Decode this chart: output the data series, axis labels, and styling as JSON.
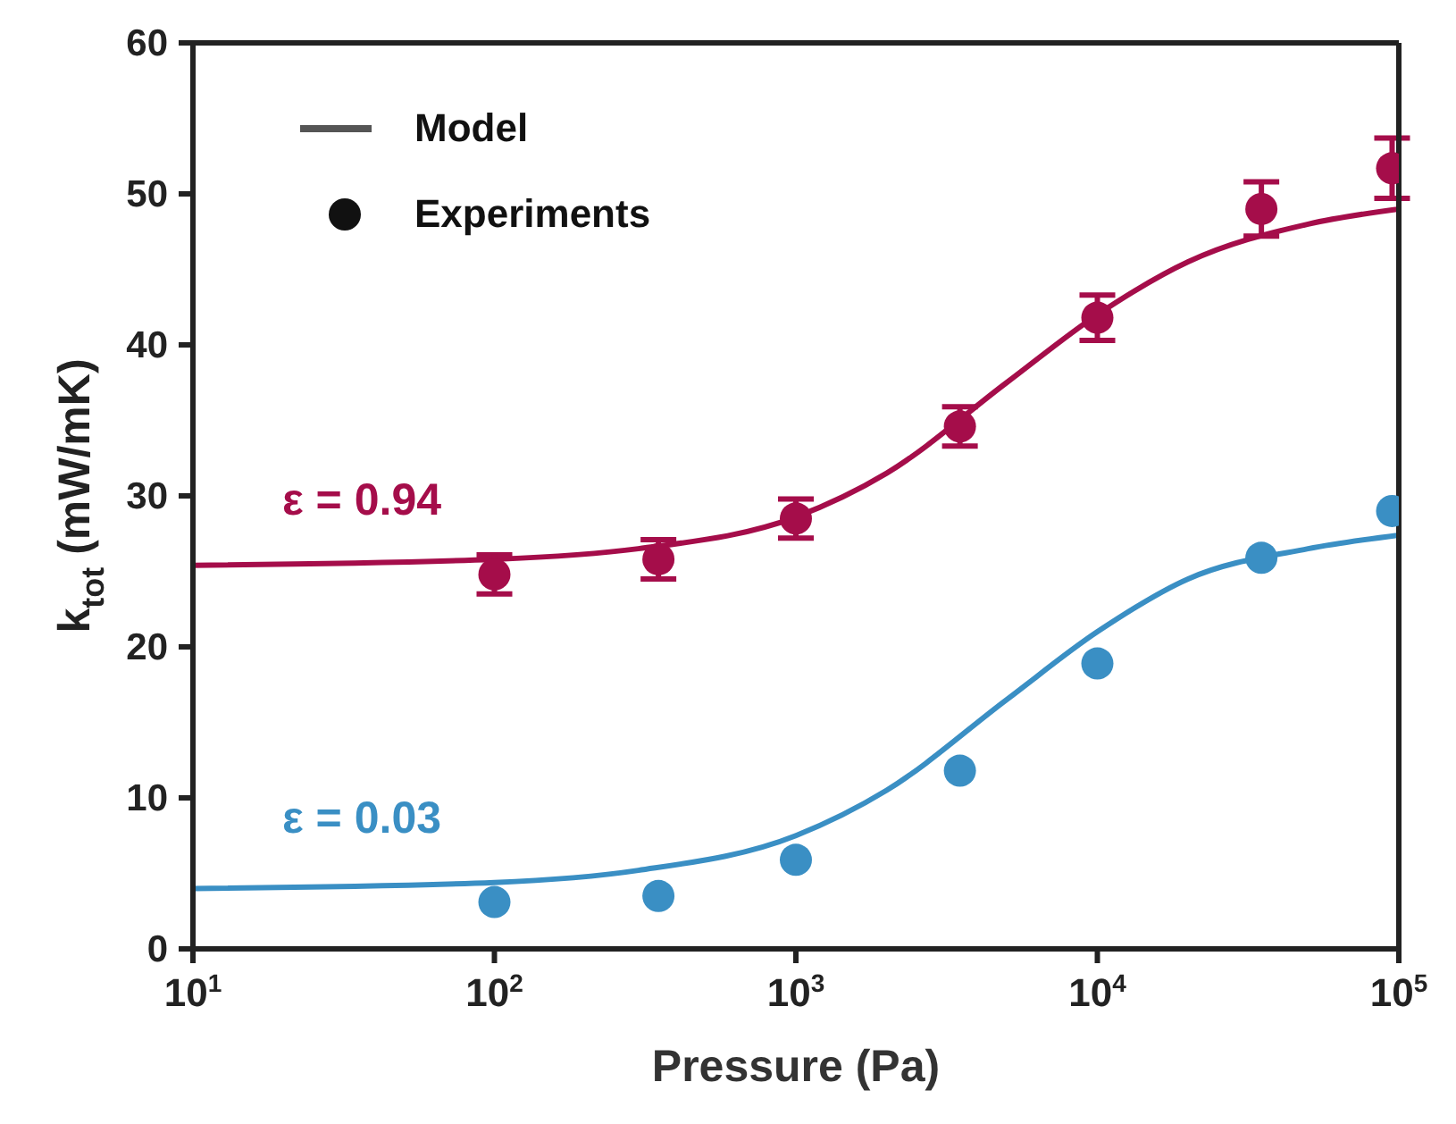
{
  "chart_data": {
    "type": "scatter",
    "xlabel": "Pressure (Pa)",
    "ylabel": "k$_{tot}$ (mW/mK)",
    "log": "x",
    "xlim": [
      10,
      100000
    ],
    "xticks": [
      {
        "value": 10,
        "label": "10$^{1}$"
      },
      {
        "value": 100,
        "label": "10$^{2}$"
      },
      {
        "value": 1000,
        "label": "10$^{3}$"
      },
      {
        "value": 10000,
        "label": "10$^{4}$"
      },
      {
        "value": 100000,
        "label": "10$^{5}$"
      }
    ],
    "ylim": [
      0,
      60
    ],
    "yticks": [
      0,
      10,
      20,
      30,
      40,
      50,
      60
    ],
    "line_style": "solid",
    "series": [
      {
        "type": "line",
        "marker": "none",
        "color": "#a50d4a",
        "x": [
          10,
          100,
          300,
          1000,
          2000,
          5000,
          10000,
          20000,
          50000,
          100000
        ],
        "values": [
          25.4,
          25.8,
          26.5,
          28.6,
          31.5,
          37.5,
          42,
          45.5,
          48,
          49
        ]
      },
      {
        "type": "line",
        "marker": "none",
        "color": "#3a8fc4",
        "x": [
          10,
          100,
          300,
          1000,
          2000,
          5000,
          10000,
          20000,
          50000,
          100000
        ],
        "values": [
          4.0,
          4.4,
          5.2,
          7.5,
          10.5,
          16.5,
          21,
          24.5,
          26.5,
          27.4
        ]
      },
      {
        "marker": "circle",
        "color": "#a50d4a",
        "x": [
          100,
          350,
          1000,
          3500,
          10000,
          35000,
          95000
        ],
        "values": [
          24.8,
          25.8,
          28.5,
          34.6,
          41.8,
          49,
          51.7
        ],
        "errors": [
          1.3,
          1.3,
          1.3,
          1.3,
          1.5,
          1.8,
          2
        ]
      },
      {
        "marker": "circle",
        "color": "#3a8fc4",
        "x": [
          100,
          350,
          1000,
          3500,
          10000,
          35000,
          95000
        ],
        "values": [
          3.1,
          3.5,
          5.9,
          11.8,
          18.9,
          25.9,
          29.0
        ]
      }
    ],
    "annotations": [
      "Model",
      "Experiments",
      "ε = 0.94",
      "ε = 0.03"
    ]
  }
}
